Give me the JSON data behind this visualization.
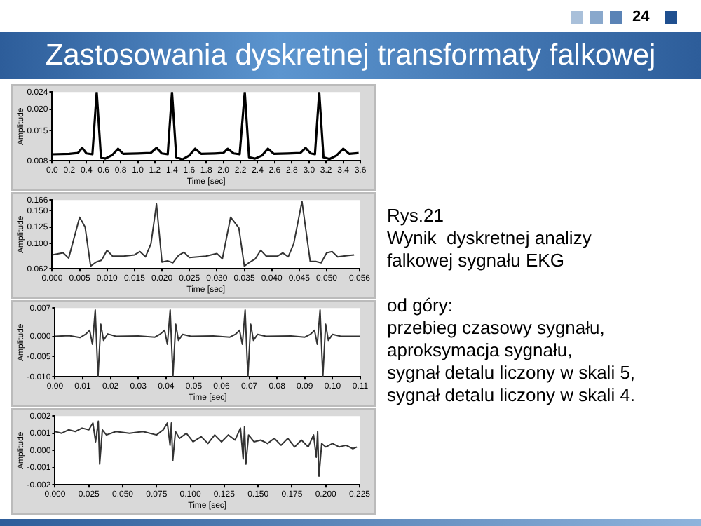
{
  "chart_data": [
    {
      "type": "line",
      "xlabel": "Time [sec]",
      "ylabel": "Amplitude",
      "grid": false,
      "marker": "none",
      "line_style": "solid",
      "xlim": [
        0,
        3.6
      ],
      "ylim": [
        0.008,
        0.024
      ],
      "xticks": [
        {
          "value": 0,
          "label": "0.0"
        },
        0.2,
        0.4,
        0.6,
        0.8,
        {
          "value": 1,
          "label": "1.0"
        },
        1.2,
        1.4,
        1.6,
        1.8,
        {
          "value": 2,
          "label": "2.0"
        },
        2.2,
        2.4,
        2.6,
        2.8,
        {
          "value": 3,
          "label": "3.0"
        },
        3.2,
        3.4,
        3.6
      ],
      "yticks": [
        0.008,
        0.015,
        {
          "value": 0.02,
          "label": "0.020"
        },
        0.024
      ],
      "series": [
        {
          "color": "#000000",
          "x": [
            0,
            0.2,
            0.3,
            0.35,
            0.4,
            0.47,
            0.52,
            0.57,
            0.62,
            0.7,
            0.77,
            0.83,
            1.0,
            1.15,
            1.22,
            1.28,
            1.35,
            1.4,
            1.45,
            1.52,
            1.6,
            1.67,
            1.74,
            1.9,
            2.0,
            2.05,
            2.12,
            2.19,
            2.25,
            2.3,
            2.37,
            2.45,
            2.52,
            2.59,
            2.75,
            2.9,
            2.96,
            3.02,
            3.07,
            3.12,
            3.17,
            3.24,
            3.32,
            3.4,
            3.47,
            3.58
          ],
          "values": [
            0.0095,
            0.0096,
            0.0098,
            0.011,
            0.0097,
            0.0095,
            0.024,
            0.0088,
            0.0085,
            0.0093,
            0.0108,
            0.0096,
            0.0097,
            0.0098,
            0.011,
            0.0097,
            0.0095,
            0.024,
            0.0088,
            0.0083,
            0.0092,
            0.0108,
            0.0096,
            0.0097,
            0.0098,
            0.0108,
            0.0097,
            0.0095,
            0.024,
            0.0088,
            0.0085,
            0.0092,
            0.0108,
            0.0096,
            0.0097,
            0.0098,
            0.011,
            0.0097,
            0.0095,
            0.024,
            0.0088,
            0.0084,
            0.0092,
            0.0108,
            0.0096,
            0.0098
          ]
        }
      ]
    },
    {
      "type": "line",
      "xlabel": "Time [sec]",
      "ylabel": "Amplitude",
      "grid": false,
      "marker": "none",
      "line_style": "solid",
      "xlim": [
        0,
        0.056
      ],
      "ylim": [
        0.062,
        0.166
      ],
      "xticks": [
        {
          "value": 0,
          "label": "0.000"
        },
        0.005,
        {
          "value": 0.01,
          "label": "0.010"
        },
        0.015,
        {
          "value": 0.02,
          "label": "0.020"
        },
        0.025,
        {
          "value": 0.03,
          "label": "0.030"
        },
        0.035,
        {
          "value": 0.04,
          "label": "0.040"
        },
        0.045,
        {
          "value": 0.05,
          "label": "0.050"
        },
        0.056
      ],
      "yticks": [
        0.062,
        {
          "value": 0.1,
          "label": "0.100"
        },
        0.125,
        {
          "value": 0.15,
          "label": "0.150"
        },
        0.166
      ],
      "series": [
        {
          "color": "#333333",
          "x": [
            0,
            0.002,
            0.003,
            0.005,
            0.006,
            0.007,
            0.008,
            0.009,
            0.01,
            0.011,
            0.013,
            0.015,
            0.016,
            0.017,
            0.018,
            0.019,
            0.02,
            0.021,
            0.022,
            0.023,
            0.024,
            0.025,
            0.028,
            0.03,
            0.031,
            0.0325,
            0.034,
            0.035,
            0.036,
            0.037,
            0.038,
            0.039,
            0.041,
            0.042,
            0.043,
            0.044,
            0.0455,
            0.047,
            0.048,
            0.049,
            0.05,
            0.051,
            0.052,
            0.054,
            0.055
          ],
          "values": [
            0.083,
            0.086,
            0.078,
            0.14,
            0.125,
            0.066,
            0.072,
            0.075,
            0.09,
            0.081,
            0.081,
            0.083,
            0.088,
            0.08,
            0.1,
            0.16,
            0.072,
            0.074,
            0.071,
            0.082,
            0.087,
            0.079,
            0.081,
            0.085,
            0.077,
            0.14,
            0.124,
            0.066,
            0.072,
            0.077,
            0.09,
            0.081,
            0.081,
            0.086,
            0.08,
            0.1,
            0.164,
            0.073,
            0.073,
            0.071,
            0.086,
            0.088,
            0.08,
            0.082,
            0.083
          ]
        }
      ]
    },
    {
      "type": "line",
      "xlabel": "Time [sec]",
      "ylabel": "Amplitude",
      "grid": false,
      "marker": "none",
      "line_style": "solid",
      "xlim": [
        0,
        0.11
      ],
      "ylim": [
        -0.01,
        0.007
      ],
      "xticks": [
        {
          "value": 0,
          "label": "0.00"
        },
        0.01,
        0.02,
        0.03,
        0.04,
        0.05,
        0.06,
        0.07,
        0.08,
        0.09,
        {
          "value": 0.1,
          "label": "0.10"
        },
        0.11
      ],
      "yticks": [
        0.007,
        {
          "value": 0,
          "label": "0.000"
        },
        -0.005,
        {
          "value": -0.01,
          "label": "-0.010"
        }
      ],
      "series": [
        {
          "color": "#333333",
          "x": [
            0,
            0.005,
            0.009,
            0.011,
            0.0125,
            0.0135,
            0.0145,
            0.0155,
            0.0165,
            0.0175,
            0.019,
            0.022,
            0.03,
            0.036,
            0.038,
            0.0395,
            0.0405,
            0.0415,
            0.0425,
            0.0435,
            0.0445,
            0.046,
            0.049,
            0.057,
            0.063,
            0.065,
            0.0665,
            0.0675,
            0.0685,
            0.0695,
            0.0705,
            0.0715,
            0.073,
            0.076,
            0.085,
            0.09,
            0.092,
            0.0935,
            0.0945,
            0.0955,
            0.0965,
            0.0975,
            0.0985,
            0.1,
            0.103,
            0.11
          ],
          "values": [
            0,
            0.0002,
            -0.0003,
            0.0005,
            0.0015,
            -0.002,
            0.0065,
            -0.01,
            0.003,
            -0.001,
            0.0006,
            0,
            0.0001,
            -0.0002,
            0.0006,
            0.0015,
            -0.002,
            0.0065,
            -0.0098,
            0.003,
            -0.001,
            0.0005,
            0,
            0.0001,
            -0.0002,
            0.0005,
            0.0015,
            -0.002,
            0.0065,
            -0.01,
            0.003,
            -0.001,
            0.0005,
            0,
            0.0001,
            -0.0002,
            0.0005,
            0.0015,
            -0.002,
            0.0065,
            -0.01,
            0.003,
            -0.001,
            0.0005,
            0,
            0
          ]
        }
      ]
    },
    {
      "type": "line",
      "xlabel": "Time [sec]",
      "ylabel": "Amplitude",
      "grid": false,
      "marker": "none",
      "line_style": "solid",
      "xlim": [
        0,
        0.225
      ],
      "ylim": [
        -0.002,
        0.002
      ],
      "xticks": [
        {
          "value": 0,
          "label": "0.000"
        },
        0.025,
        {
          "value": 0.05,
          "label": "0.050"
        },
        0.075,
        {
          "value": 0.1,
          "label": "0.100"
        },
        0.125,
        {
          "value": 0.15,
          "label": "0.150"
        },
        0.175,
        {
          "value": 0.2,
          "label": "0.200"
        },
        0.225
      ],
      "yticks": [
        0.002,
        0.001,
        {
          "value": 0,
          "label": "0.000"
        },
        -0.001,
        -0.002
      ],
      "series": [
        {
          "color": "#333333",
          "x": [
            0,
            0.005,
            0.01,
            0.015,
            0.02,
            0.025,
            0.028,
            0.03,
            0.032,
            0.033,
            0.035,
            0.038,
            0.045,
            0.055,
            0.065,
            0.075,
            0.08,
            0.083,
            0.085,
            0.086,
            0.087,
            0.089,
            0.092,
            0.097,
            0.102,
            0.108,
            0.113,
            0.118,
            0.123,
            0.128,
            0.133,
            0.137,
            0.139,
            0.14,
            0.141,
            0.143,
            0.147,
            0.152,
            0.157,
            0.162,
            0.167,
            0.172,
            0.177,
            0.182,
            0.187,
            0.191,
            0.193,
            0.194,
            0.195,
            0.197,
            0.2,
            0.205,
            0.21,
            0.215,
            0.22,
            0.223
          ],
          "values": [
            0.0011,
            0.001,
            0.0012,
            0.0011,
            0.0013,
            0.0012,
            0.0016,
            0.0005,
            0.0017,
            -0.0008,
            0.0012,
            0.0009,
            0.0011,
            0.001,
            0.0011,
            0.0009,
            0.0012,
            0.0016,
            0.0003,
            0.0016,
            -0.0006,
            0.0011,
            0.0007,
            0.001,
            0.0005,
            0.0008,
            0.0004,
            0.0009,
            0.0005,
            0.0009,
            0.0006,
            0.0013,
            -0.0005,
            0.0014,
            -0.0008,
            0.0009,
            0.0005,
            0.0006,
            0.0004,
            0.0007,
            0.0003,
            0.0007,
            0.0002,
            0.0006,
            0.0002,
            0.0009,
            -0.0004,
            0.0011,
            -0.0015,
            0.0004,
            0.0002,
            0.0004,
            0.0002,
            0.0003,
            0.0001,
            0.0002
          ]
        }
      ]
    },
    {
      "type": "other",
      "title": "Zastosowania dyskretnej transformaty falkowej",
      "annotations": [
        "24",
        "Rys.21",
        "Wynik  dyskretnej analizy",
        "falkowej sygnału EKG",
        "od góry:",
        "przebieg czasowy sygnału,",
        "aproksymacja sygnału,",
        "sygnał detalu liczony w skali 5,",
        "sygnał detalu liczony w skali 4."
      ]
    }
  ]
}
